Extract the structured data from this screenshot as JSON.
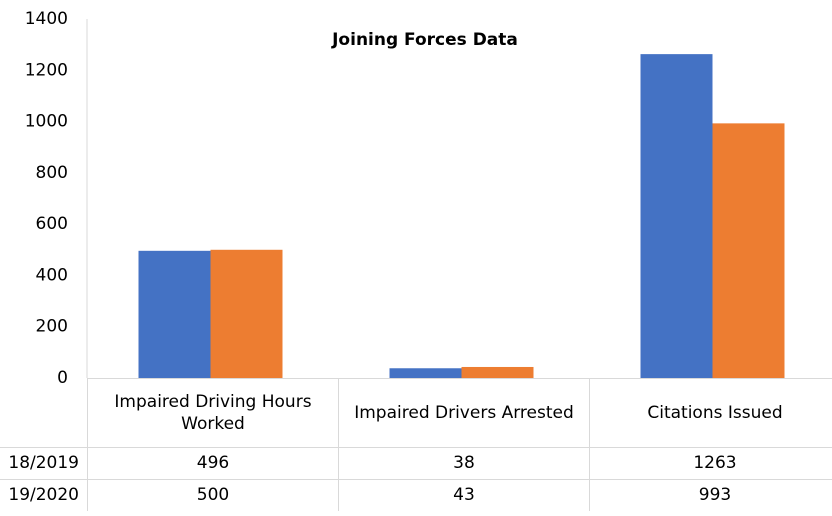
{
  "chart_data": {
    "type": "bar",
    "title": "Joining Forces Data",
    "categories": [
      "Impaired Driving Hours Worked",
      "Impaired Drivers Arrested",
      "Citations Issued"
    ],
    "series": [
      {
        "name": "18/2019",
        "color": "#4472c4",
        "values": [
          496,
          38,
          1263
        ]
      },
      {
        "name": "19/2020",
        "color": "#ed7d31",
        "values": [
          500,
          43,
          993
        ]
      }
    ],
    "ylim": [
      0,
      1400
    ],
    "yticks": [
      0,
      200,
      400,
      600,
      800,
      1000,
      1200,
      1400
    ],
    "grid": false
  }
}
